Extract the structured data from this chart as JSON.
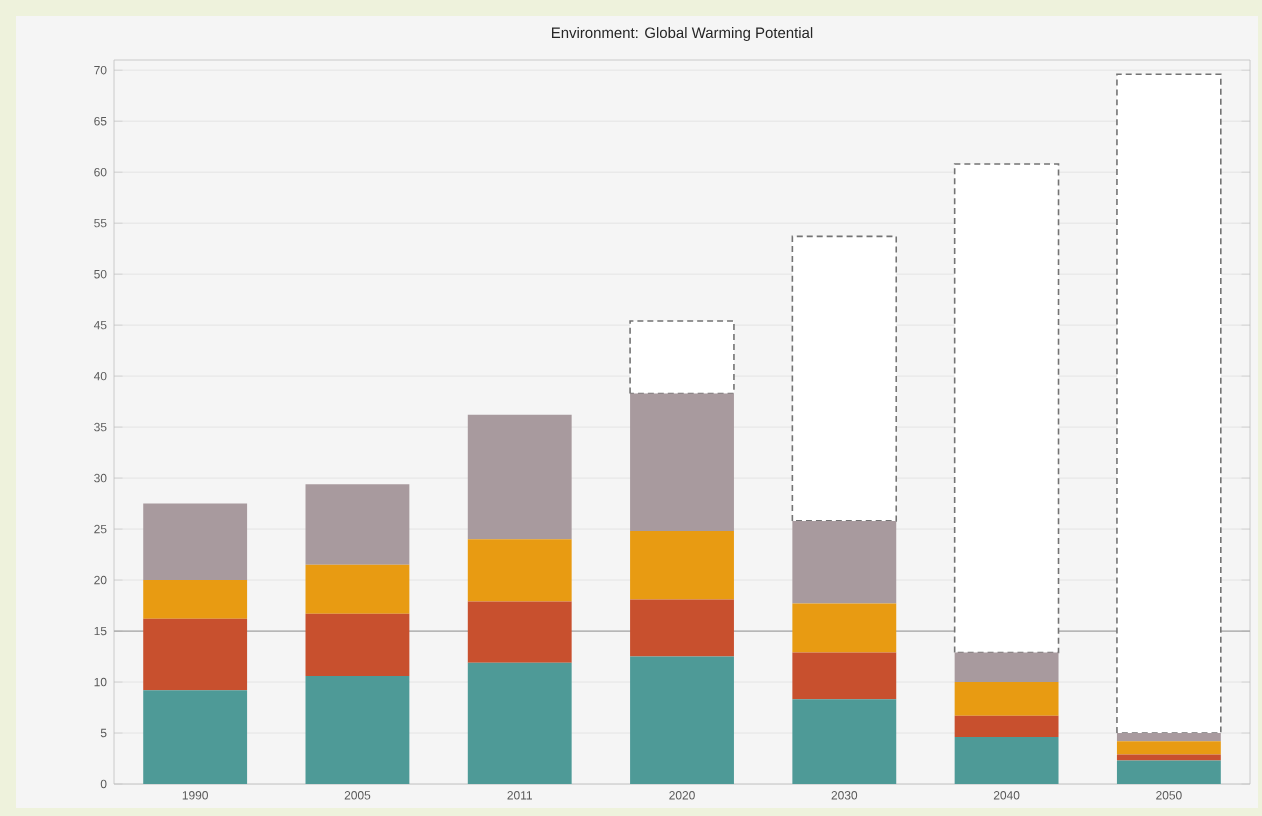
{
  "chart_data": {
    "type": "bar",
    "title": "Environment: Global Warming Potential",
    "stacked": true,
    "grid": "y",
    "categories": [
      "1990",
      "2005",
      "2011",
      "2020",
      "2030",
      "2040",
      "2050"
    ],
    "series": [
      {
        "color": "#4e9a97",
        "values": [
          9.2,
          10.6,
          11.9,
          12.5,
          8.3,
          4.6,
          2.3
        ]
      },
      {
        "color": "#c8502e",
        "values": [
          7,
          6.1,
          6,
          5.6,
          4.6,
          2.1,
          0.6
        ]
      },
      {
        "color": "#e89b12",
        "values": [
          3.8,
          4.8,
          6.1,
          6.7,
          4.8,
          3.3,
          1.3
        ]
      },
      {
        "color": "#a89a9e",
        "values": [
          7.5,
          7.9,
          12.2,
          13.5,
          8.1,
          2.9,
          0.8
        ]
      },
      {
        "color": "#ffffff",
        "line_style": "dashed",
        "values": [
          null,
          null,
          null,
          7.1,
          27.9,
          47.9,
          64.6
        ]
      }
    ],
    "ylim": [
      0,
      71
    ],
    "yticks": [
      0,
      5,
      10,
      15,
      20,
      25,
      30,
      35,
      40,
      45,
      50,
      55,
      60,
      65,
      70
    ],
    "ref_lines": [
      {
        "axis": "y",
        "value": 15,
        "color": "#a6a6a6"
      }
    ]
  }
}
